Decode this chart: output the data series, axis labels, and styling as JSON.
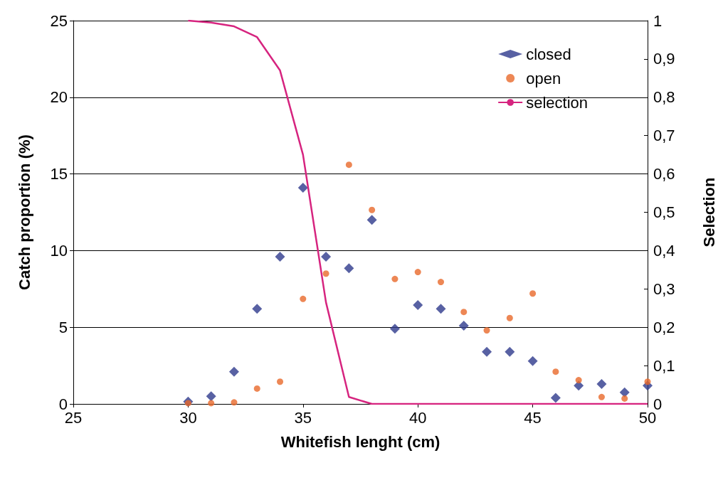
{
  "chart_data": {
    "type": "scatter",
    "xlabel": "Whitefish lenght (cm)",
    "ylabel": "Catch proportion (%)",
    "y2label": "Selection",
    "x": [
      30,
      31,
      32,
      33,
      34,
      35,
      36,
      37,
      38,
      39,
      40,
      41,
      42,
      43,
      44,
      45,
      46,
      47,
      48,
      49,
      50
    ],
    "series": [
      {
        "name": "closed",
        "color": "#2e3a8c",
        "marker": "diamond",
        "values": [
          0.15,
          0.5,
          2.1,
          6.2,
          9.6,
          14.1,
          9.6,
          8.85,
          12.0,
          4.9,
          6.45,
          6.2,
          5.1,
          3.4,
          3.4,
          2.8,
          0.4,
          1.2,
          1.3,
          0.75,
          1.2
        ]
      },
      {
        "name": "open",
        "color": "#e8692a",
        "marker": "circle",
        "values": [
          0.05,
          0.05,
          0.1,
          1.0,
          1.45,
          6.85,
          8.5,
          15.6,
          12.65,
          8.15,
          8.6,
          7.95,
          6.0,
          4.8,
          5.6,
          7.2,
          2.1,
          1.55,
          0.45,
          0.35,
          1.45
        ]
      },
      {
        "name": "selection",
        "color": "#d6247f",
        "type": "line",
        "axis": "y2",
        "marker": "none",
        "line_style": "solid",
        "values": [
          1.0,
          0.995,
          0.985,
          0.957,
          0.87,
          0.65,
          0.265,
          0.018,
          0,
          0,
          0,
          0,
          0,
          0,
          0,
          0,
          0,
          0,
          0,
          0,
          0
        ]
      }
    ],
    "xlim": [
      25,
      50
    ],
    "xticks": [
      25,
      30,
      35,
      40,
      45,
      50
    ],
    "ylim": [
      0,
      25
    ],
    "yticks": [
      0,
      5,
      10,
      15,
      20,
      25
    ],
    "y2lim": [
      0,
      1
    ],
    "y2ticks": [
      0,
      {
        "value": 0.1,
        "label": "0,1"
      },
      {
        "value": 0.2,
        "label": "0,2"
      },
      {
        "value": 0.3,
        "label": "0,3"
      },
      {
        "value": 0.4,
        "label": "0,4"
      },
      {
        "value": 0.5,
        "label": "0,5"
      },
      {
        "value": 0.6,
        "label": "0,6"
      },
      {
        "value": 0.7,
        "label": "0,7"
      },
      {
        "value": 0.8,
        "label": "0,8"
      },
      {
        "value": 0.9,
        "label": "0,9"
      },
      1
    ],
    "grid": "y",
    "legend": "top right"
  }
}
